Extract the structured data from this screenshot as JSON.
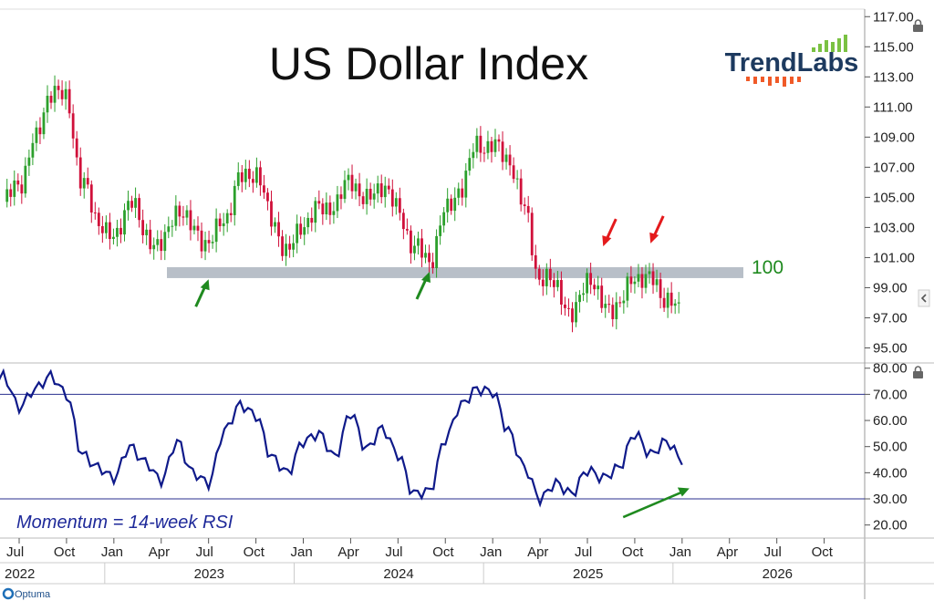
{
  "chart_data": [
    {
      "type": "candlestick",
      "title": "US Dollar Index",
      "brand": "TrendLabs",
      "footer_brand": "Optuma",
      "ylim": [
        94,
        117.5
      ],
      "yticks": [
        "117.00",
        "115.00",
        "113.00",
        "111.00",
        "109.00",
        "107.00",
        "105.00",
        "103.00",
        "101.00",
        "99.00",
        "97.00",
        "95.00"
      ],
      "ytick_values": [
        117,
        115,
        113,
        111,
        109,
        107,
        105,
        103,
        101,
        99,
        97,
        95
      ],
      "support_level": 100,
      "support_label": "100",
      "colors": {
        "up": "#2ca02c",
        "down": "#d0103a",
        "support": "#b8bfc8",
        "annotation_green": "#1f8a1f",
        "annotation_red": "#e41a1c"
      },
      "close_series": [
        {
          "date": "2022-06",
          "close": 104.7
        },
        {
          "date": "2022-07",
          "close": 105.9
        },
        {
          "date": "2022-08",
          "close": 108.7
        },
        {
          "date": "2022-09",
          "close": 112.1
        },
        {
          "date": "2022-10",
          "close": 111.5
        },
        {
          "date": "2022-11",
          "close": 105.9
        },
        {
          "date": "2022-12",
          "close": 103.5
        },
        {
          "date": "2023-01",
          "close": 102.1
        },
        {
          "date": "2023-02",
          "close": 104.9
        },
        {
          "date": "2023-03",
          "close": 102.5
        },
        {
          "date": "2023-04",
          "close": 101.7
        },
        {
          "date": "2023-05",
          "close": 104.3
        },
        {
          "date": "2023-06",
          "close": 102.9
        },
        {
          "date": "2023-07",
          "close": 101.9
        },
        {
          "date": "2023-08",
          "close": 103.6
        },
        {
          "date": "2023-09",
          "close": 106.2
        },
        {
          "date": "2023-10",
          "close": 106.7
        },
        {
          "date": "2023-11",
          "close": 103.5
        },
        {
          "date": "2023-12",
          "close": 101.3
        },
        {
          "date": "2024-01",
          "close": 103.3
        },
        {
          "date": "2024-02",
          "close": 104.2
        },
        {
          "date": "2024-03",
          "close": 104.5
        },
        {
          "date": "2024-04",
          "close": 106.2
        },
        {
          "date": "2024-05",
          "close": 104.7
        },
        {
          "date": "2024-06",
          "close": 105.9
        },
        {
          "date": "2024-07",
          "close": 104.1
        },
        {
          "date": "2024-08",
          "close": 101.7
        },
        {
          "date": "2024-09",
          "close": 100.8
        },
        {
          "date": "2024-10",
          "close": 104.0
        },
        {
          "date": "2024-11",
          "close": 105.7
        },
        {
          "date": "2024-12",
          "close": 108.5
        },
        {
          "date": "2025-01",
          "close": 108.4
        },
        {
          "date": "2025-02",
          "close": 107.6
        },
        {
          "date": "2025-03",
          "close": 104.2
        },
        {
          "date": "2025-04",
          "close": 99.5
        },
        {
          "date": "2025-05",
          "close": 99.3
        },
        {
          "date": "2025-06",
          "close": 96.9
        },
        {
          "date": "2025-07",
          "close": 99.8
        },
        {
          "date": "2025-08",
          "close": 97.8
        },
        {
          "date": "2025-09",
          "close": 97.8
        },
        {
          "date": "2025-10",
          "close": 99.8
        },
        {
          "date": "2025-11",
          "close": 99.5
        },
        {
          "date": "2025-12",
          "close": 98.3
        },
        {
          "date": "2026-01",
          "close": 97.2
        }
      ],
      "arrows": [
        {
          "kind": "support-bounce",
          "color": "green",
          "date": "2023-07",
          "value": 99.8
        },
        {
          "kind": "support-bounce",
          "color": "green",
          "date": "2024-09",
          "value": 100.3
        },
        {
          "kind": "resistance-test",
          "color": "red",
          "date": "2025-08",
          "value": 101.5
        },
        {
          "kind": "resistance-test",
          "color": "red",
          "date": "2025-11",
          "value": 101.7
        }
      ]
    },
    {
      "type": "line",
      "label": "Momentum = 14-week RSI",
      "ylim": [
        15,
        82
      ],
      "yticks": [
        "80.00",
        "70.00",
        "60.00",
        "50.00",
        "40.00",
        "30.00",
        "20.00"
      ],
      "ytick_values": [
        80,
        70,
        60,
        50,
        40,
        30,
        20
      ],
      "reference_lines": [
        70,
        30
      ],
      "color": "#0f1a8a",
      "divergence_arrow": {
        "from": {
          "date": "2025-11",
          "value": 23
        },
        "to": {
          "date": "2026-01",
          "value": 34
        },
        "color": "#1f8a1f"
      },
      "series": [
        {
          "date": "2022-05",
          "value": 69
        },
        {
          "date": "2022-06",
          "value": 77
        },
        {
          "date": "2022-07",
          "value": 65
        },
        {
          "date": "2022-08",
          "value": 72
        },
        {
          "date": "2022-09",
          "value": 77
        },
        {
          "date": "2022-10",
          "value": 70
        },
        {
          "date": "2022-11",
          "value": 47
        },
        {
          "date": "2022-12",
          "value": 42
        },
        {
          "date": "2023-01",
          "value": 38
        },
        {
          "date": "2023-02",
          "value": 50
        },
        {
          "date": "2023-03",
          "value": 44
        },
        {
          "date": "2023-04",
          "value": 37
        },
        {
          "date": "2023-05",
          "value": 52
        },
        {
          "date": "2023-06",
          "value": 40
        },
        {
          "date": "2023-07",
          "value": 36
        },
        {
          "date": "2023-08",
          "value": 56
        },
        {
          "date": "2023-09",
          "value": 66
        },
        {
          "date": "2023-10",
          "value": 62
        },
        {
          "date": "2023-11",
          "value": 46
        },
        {
          "date": "2023-12",
          "value": 40
        },
        {
          "date": "2024-01",
          "value": 52
        },
        {
          "date": "2024-02",
          "value": 55
        },
        {
          "date": "2024-03",
          "value": 46
        },
        {
          "date": "2024-04",
          "value": 63
        },
        {
          "date": "2024-05",
          "value": 49
        },
        {
          "date": "2024-06",
          "value": 57
        },
        {
          "date": "2024-07",
          "value": 47
        },
        {
          "date": "2024-08",
          "value": 32
        },
        {
          "date": "2024-09",
          "value": 33
        },
        {
          "date": "2024-10",
          "value": 53
        },
        {
          "date": "2024-11",
          "value": 66
        },
        {
          "date": "2024-12",
          "value": 72
        },
        {
          "date": "2025-01",
          "value": 71
        },
        {
          "date": "2025-02",
          "value": 56
        },
        {
          "date": "2025-03",
          "value": 42
        },
        {
          "date": "2025-04",
          "value": 30
        },
        {
          "date": "2025-05",
          "value": 36
        },
        {
          "date": "2025-06",
          "value": 32
        },
        {
          "date": "2025-07",
          "value": 41
        },
        {
          "date": "2025-08",
          "value": 38
        },
        {
          "date": "2025-09",
          "value": 42
        },
        {
          "date": "2025-10",
          "value": 55
        },
        {
          "date": "2025-11",
          "value": 47
        },
        {
          "date": "2025-12",
          "value": 52
        },
        {
          "date": "2026-01",
          "value": 45
        }
      ]
    }
  ],
  "x_axis": {
    "month_ticks": [
      {
        "label": "Jul",
        "date": "2022-07"
      },
      {
        "label": "Oct",
        "date": "2022-10"
      },
      {
        "label": "Jan",
        "date": "2023-01"
      },
      {
        "label": "Apr",
        "date": "2023-04"
      },
      {
        "label": "Jul",
        "date": "2023-07"
      },
      {
        "label": "Oct",
        "date": "2023-10"
      },
      {
        "label": "Jan",
        "date": "2024-01"
      },
      {
        "label": "Apr",
        "date": "2024-04"
      },
      {
        "label": "Jul",
        "date": "2024-07"
      },
      {
        "label": "Oct",
        "date": "2024-10"
      },
      {
        "label": "Jan",
        "date": "2025-01"
      },
      {
        "label": "Apr",
        "date": "2025-04"
      },
      {
        "label": "Jul",
        "date": "2025-07"
      },
      {
        "label": "Oct",
        "date": "2025-10"
      },
      {
        "label": "Jan",
        "date": "2026-01"
      },
      {
        "label": "Apr",
        "date": "2026-04"
      },
      {
        "label": "Jul",
        "date": "2026-07"
      },
      {
        "label": "Oct",
        "date": "2026-10"
      }
    ],
    "year_labels": [
      {
        "label": "2022",
        "date": "2022-07"
      },
      {
        "label": "2023",
        "date": "2023-07"
      },
      {
        "label": "2024",
        "date": "2024-07"
      },
      {
        "label": "2025",
        "date": "2025-07"
      },
      {
        "label": "2026",
        "date": "2026-07"
      }
    ],
    "year_boundaries": [
      "2023-01",
      "2024-01",
      "2025-01",
      "2026-01"
    ]
  }
}
